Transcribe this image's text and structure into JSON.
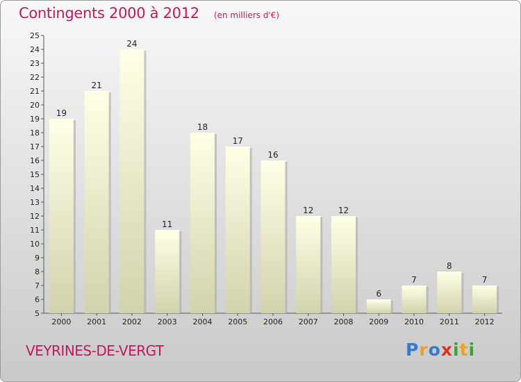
{
  "header": {
    "title": "Contingents 2000 à 2012",
    "unit": "(en milliers d'€)"
  },
  "footer": {
    "commune": "VEYRINES-DE-VERGT",
    "logo_letters": [
      {
        "ch": "P",
        "color": "#3a78c8"
      },
      {
        "ch": "r",
        "color": "#f0a020"
      },
      {
        "ch": "o",
        "color": "#3a78c8"
      },
      {
        "ch": "x",
        "color": "#e03020"
      },
      {
        "ch": "i",
        "color": "#3aa040"
      },
      {
        "ch": "t",
        "color": "#f0a020"
      },
      {
        "ch": "i",
        "color": "#3aa040"
      }
    ]
  },
  "colors": {
    "title": "#c2185b",
    "bar_top": "#ffffe6",
    "bar_bottom": "#d2d2ad",
    "bar_shadow": "#a9a9a9"
  },
  "chart_data": {
    "type": "bar",
    "categories": [
      "2000",
      "2001",
      "2002",
      "2003",
      "2004",
      "2005",
      "2006",
      "2007",
      "2008",
      "2009",
      "2010",
      "2011",
      "2012"
    ],
    "values": [
      19,
      21,
      24,
      11,
      18,
      17,
      16,
      12,
      12,
      6,
      7,
      8,
      7
    ],
    "yticks": [
      5,
      6,
      7,
      8,
      9,
      10,
      11,
      12,
      13,
      14,
      15,
      16,
      17,
      18,
      19,
      20,
      21,
      22,
      23,
      24,
      25
    ],
    "ylim": [
      5,
      25
    ],
    "grid": false
  }
}
